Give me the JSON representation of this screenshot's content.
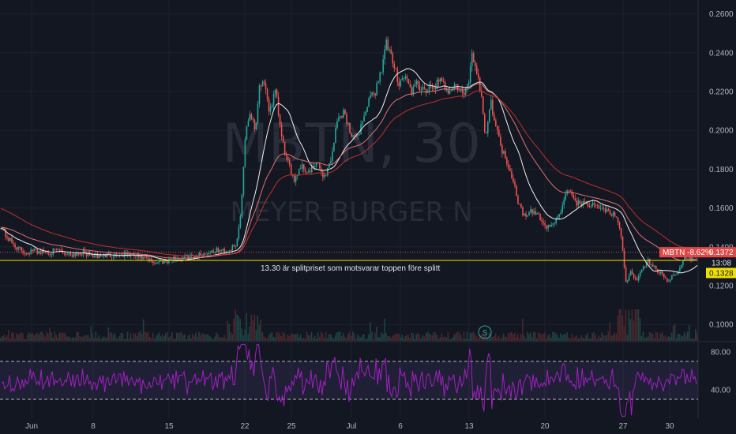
{
  "chart_data": {
    "type": "candlestick",
    "watermark_symbol": "MBTN, 30",
    "watermark_name": "MEYER BURGER N",
    "price_axis": {
      "ticks": [
        0.26,
        0.24,
        0.22,
        0.2,
        0.18,
        0.16,
        0.14,
        0.12,
        0.1
      ],
      "tick_labels": [
        "0.2600",
        "0.2400",
        "0.2200",
        "0.2000",
        "0.1800",
        "0.1600",
        "0.1400",
        "0.1200",
        "0.1000"
      ],
      "range": [
        0.0915,
        0.2672
      ]
    },
    "time_axis": {
      "labels": [
        "Jun",
        "8",
        "15",
        "22",
        "25",
        "Jul",
        "6",
        "13",
        "20",
        "27",
        "30"
      ]
    },
    "horizontal_line": {
      "price": 0.133,
      "color": "#f0e000",
      "note": "13.30 är splitpriset som motsvarar toppen före splitt"
    },
    "last_price_tag": {
      "label": "MBTN -8.62%",
      "price_text": "0.1372",
      "price": 0.1372,
      "color": "#e04848"
    },
    "countdown_tag": {
      "text": "13:08"
    },
    "line_price_tag": {
      "price_text": "0.1328",
      "price": 0.1328,
      "color": "#f0e000"
    },
    "event_marker": {
      "text": "S"
    },
    "rsi": {
      "levels": [
        70,
        30
      ],
      "tick_labels": [
        "80.00",
        "40.00"
      ],
      "range": [
        10,
        90
      ],
      "color": "#a020c0"
    },
    "anchor_closes": [
      [
        0,
        0.151
      ],
      [
        6,
        0.146
      ],
      [
        14,
        0.142
      ],
      [
        22,
        0.139
      ],
      [
        32,
        0.137
      ],
      [
        44,
        0.138
      ],
      [
        58,
        0.137
      ],
      [
        72,
        0.138
      ],
      [
        88,
        0.136
      ],
      [
        104,
        0.137
      ],
      [
        120,
        0.135
      ],
      [
        140,
        0.136
      ],
      [
        160,
        0.136
      ],
      [
        180,
        0.134
      ],
      [
        195,
        0.132
      ],
      [
        210,
        0.133
      ],
      [
        225,
        0.134
      ],
      [
        240,
        0.135
      ],
      [
        255,
        0.136
      ],
      [
        270,
        0.138
      ],
      [
        285,
        0.138
      ],
      [
        298,
        0.14
      ],
      [
        304,
        0.158
      ],
      [
        310,
        0.2
      ],
      [
        316,
        0.21
      ],
      [
        322,
        0.2
      ],
      [
        328,
        0.225
      ],
      [
        334,
        0.222
      ],
      [
        340,
        0.21
      ],
      [
        348,
        0.22
      ],
      [
        356,
        0.195
      ],
      [
        364,
        0.182
      ],
      [
        372,
        0.175
      ],
      [
        380,
        0.182
      ],
      [
        390,
        0.178
      ],
      [
        400,
        0.183
      ],
      [
        410,
        0.176
      ],
      [
        418,
        0.185
      ],
      [
        426,
        0.205
      ],
      [
        434,
        0.21
      ],
      [
        442,
        0.2
      ],
      [
        450,
        0.195
      ],
      [
        458,
        0.205
      ],
      [
        466,
        0.215
      ],
      [
        474,
        0.22
      ],
      [
        482,
        0.232
      ],
      [
        488,
        0.245
      ],
      [
        496,
        0.235
      ],
      [
        504,
        0.225
      ],
      [
        512,
        0.228
      ],
      [
        520,
        0.22
      ],
      [
        528,
        0.224
      ],
      [
        536,
        0.219
      ],
      [
        546,
        0.222
      ],
      [
        556,
        0.225
      ],
      [
        566,
        0.221
      ],
      [
        576,
        0.223
      ],
      [
        586,
        0.218
      ],
      [
        592,
        0.223
      ],
      [
        596,
        0.24
      ],
      [
        602,
        0.232
      ],
      [
        608,
        0.22
      ],
      [
        614,
        0.196
      ],
      [
        620,
        0.215
      ],
      [
        626,
        0.205
      ],
      [
        632,
        0.193
      ],
      [
        640,
        0.185
      ],
      [
        648,
        0.176
      ],
      [
        656,
        0.162
      ],
      [
        664,
        0.155
      ],
      [
        672,
        0.158
      ],
      [
        680,
        0.157
      ],
      [
        690,
        0.15
      ],
      [
        700,
        0.152
      ],
      [
        708,
        0.156
      ],
      [
        716,
        0.17
      ],
      [
        724,
        0.165
      ],
      [
        732,
        0.162
      ],
      [
        740,
        0.163
      ],
      [
        750,
        0.161
      ],
      [
        760,
        0.16
      ],
      [
        770,
        0.158
      ],
      [
        778,
        0.156
      ],
      [
        786,
        0.145
      ],
      [
        792,
        0.12
      ],
      [
        798,
        0.127
      ],
      [
        806,
        0.123
      ],
      [
        812,
        0.128
      ],
      [
        820,
        0.133
      ],
      [
        828,
        0.129
      ],
      [
        836,
        0.126
      ],
      [
        844,
        0.123
      ],
      [
        852,
        0.125
      ],
      [
        860,
        0.13
      ],
      [
        866,
        0.134
      ],
      [
        872,
        0.134
      ],
      [
        880,
        0.137
      ]
    ]
  }
}
